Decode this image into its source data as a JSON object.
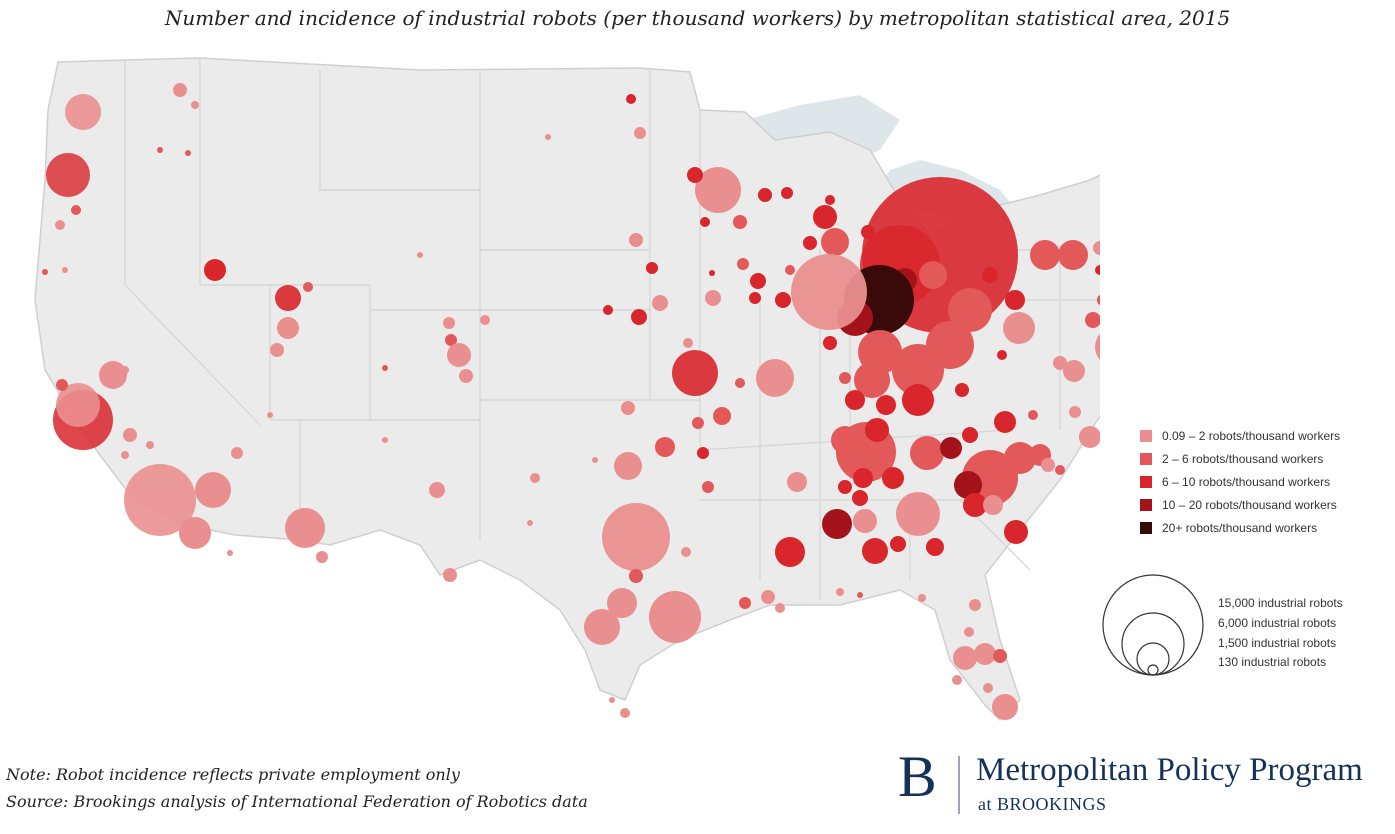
{
  "title": "Number and incidence of industrial robots (per thousand workers) by metropolitan statistical area, 2015",
  "legend": {
    "color_items": [
      {
        "label": "0.09 – 2 robots/thousand workers",
        "color": "#ea8f8f"
      },
      {
        "label": "2 – 6 robots/thousand workers",
        "color": "#e35959"
      },
      {
        "label": "6 – 10 robots/thousand workers",
        "color": "#d8262c"
      },
      {
        "label": "10 – 20 robots/thousand workers",
        "color": "#a4121a"
      },
      {
        "label": "20+ robots/thousand workers",
        "color": "#3a0a0a"
      }
    ],
    "size_items": [
      {
        "label": "15,000 industrial robots",
        "robots": 15000
      },
      {
        "label": "6,000 industrial robots",
        "robots": 6000
      },
      {
        "label": "1,500 industrial robots",
        "robots": 1500
      },
      {
        "label": "130 industrial robots",
        "robots": 130
      }
    ]
  },
  "notes": {
    "note": "Note: Robot incidence reflects private employment only",
    "source": "Source: Brookings analysis of International Federation of Robotics data"
  },
  "brand": {
    "mark": "B",
    "name": "Metropolitan Policy Program",
    "sub": "at BROOKINGS"
  }
}
